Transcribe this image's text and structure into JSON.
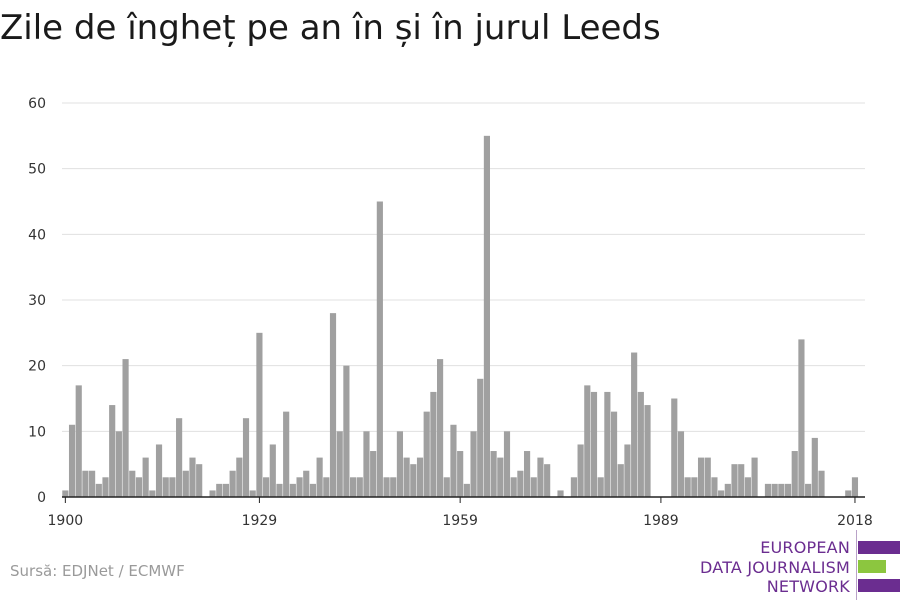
{
  "title": "Zile de îngheț pe an în și în jurul Leeds",
  "source": "Sursă: EDJNet / ECMWF",
  "logo": {
    "line1": "EUROPEAN",
    "line2": "DATA JOURNALISM",
    "line3": "NETWORK",
    "colors": [
      "#6b2d90",
      "#8cc63f",
      "#6b2d90"
    ]
  },
  "colors": {
    "bar": "#a0a0a0",
    "grid": "#e0e0e0",
    "axis": "#222222",
    "text": "#333333"
  },
  "chart_data": {
    "type": "bar",
    "title": "Zile de îngheț pe an în și în jurul Leeds",
    "xlabel": "",
    "ylabel": "",
    "ylim": [
      0,
      60
    ],
    "yticks": [
      0,
      10,
      20,
      30,
      40,
      50,
      60
    ],
    "xticks": [
      1900,
      1929,
      1959,
      1989,
      2018
    ],
    "grid": true,
    "x_start": 1900,
    "x_end": 2020,
    "values": [
      1,
      11,
      17,
      4,
      4,
      2,
      3,
      14,
      10,
      21,
      4,
      3,
      6,
      1,
      8,
      3,
      3,
      12,
      4,
      6,
      5,
      0,
      1,
      2,
      2,
      4,
      6,
      12,
      1,
      25,
      3,
      8,
      2,
      13,
      2,
      3,
      4,
      2,
      6,
      3,
      28,
      10,
      20,
      3,
      3,
      10,
      7,
      45,
      3,
      3,
      10,
      6,
      5,
      6,
      13,
      16,
      21,
      3,
      11,
      7,
      2,
      10,
      18,
      55,
      7,
      6,
      10,
      3,
      4,
      7,
      3,
      6,
      5,
      0,
      1,
      0,
      3,
      8,
      17,
      16,
      3,
      16,
      13,
      5,
      8,
      22,
      16,
      14,
      0,
      0,
      0,
      15,
      10,
      3,
      3,
      6,
      6,
      3,
      1,
      2,
      5,
      5,
      3,
      6,
      0,
      2,
      2,
      2,
      2,
      7,
      24,
      2,
      9,
      4,
      0,
      0,
      0,
      1,
      3,
      0,
      0
    ]
  }
}
